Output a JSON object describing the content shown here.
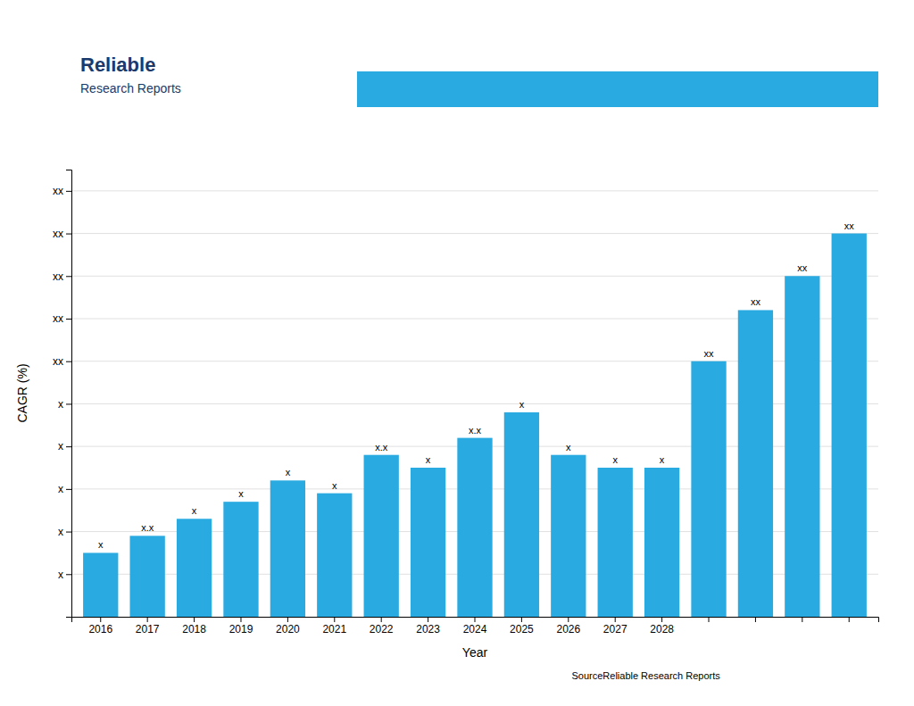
{
  "chart_data": {
    "type": "bar",
    "categories": [
      2016,
      2017,
      2018,
      2019,
      2020,
      2021,
      2022,
      2023,
      2024,
      2025,
      2026,
      2027,
      2028,
      null,
      null,
      null,
      null
    ],
    "values": [
      1.5,
      1.9,
      2.3,
      2.7,
      3.2,
      2.9,
      3.8,
      3.5,
      4.2,
      4.8,
      3.8,
      3.5,
      3.5,
      6.0,
      7.2,
      8.0,
      9.0
    ],
    "value_labels": [
      "x",
      "x.x",
      "x",
      "x",
      "x",
      "x",
      "x.x",
      "x",
      "x.x",
      "x",
      "x",
      "x",
      "x",
      "xx",
      "xx",
      "xx",
      "xx"
    ],
    "data_labels": true,
    "color": "#29ABE2",
    "x_label": "Year",
    "y_label": "CAGR (%)",
    "ylim": [
      0,
      10.5
    ],
    "yticks": [
      {
        "value": 1,
        "label": "x"
      },
      {
        "value": 2,
        "label": "x"
      },
      {
        "value": 3,
        "label": "x"
      },
      {
        "value": 4,
        "label": "x"
      },
      {
        "value": 5,
        "label": "x"
      },
      {
        "value": 6,
        "label": "xx"
      },
      {
        "value": 7,
        "label": "xx"
      },
      {
        "value": 8,
        "label": "xx"
      },
      {
        "value": 9,
        "label": "xx"
      },
      {
        "value": 10,
        "label": "xx"
      }
    ],
    "grid": true,
    "annotations": [
      "Source​Reliable Research Reports",
      "Reliable",
      "Research Reports"
    ]
  }
}
